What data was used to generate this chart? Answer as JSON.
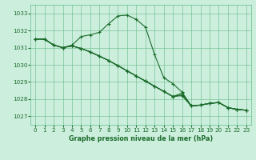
{
  "title": "Graphe pression niveau de la mer (hPa)",
  "background_color": "#cceedd",
  "grid_color": "#66bb88",
  "line_color": "#1a6b2a",
  "xlim": [
    -0.5,
    23.5
  ],
  "ylim": [
    1026.5,
    1033.5
  ],
  "yticks": [
    1027,
    1028,
    1029,
    1030,
    1031,
    1032,
    1033
  ],
  "xticks": [
    0,
    1,
    2,
    3,
    4,
    5,
    6,
    7,
    8,
    9,
    10,
    11,
    12,
    13,
    14,
    15,
    16,
    17,
    18,
    19,
    20,
    21,
    22,
    23
  ],
  "series": [
    [
      1031.5,
      1031.5,
      1031.15,
      1031.0,
      1031.15,
      1031.65,
      1031.75,
      1031.9,
      1032.4,
      1032.85,
      1032.9,
      1032.65,
      1032.2,
      1030.6,
      1029.25,
      1028.9,
      1028.4,
      1027.6,
      1027.65,
      1027.75,
      1027.8,
      1027.5,
      1027.4,
      1027.35
    ],
    [
      1031.5,
      1031.5,
      1031.15,
      1031.0,
      1031.1,
      1030.95,
      1030.75,
      1030.5,
      1030.25,
      1029.95,
      1029.65,
      1029.35,
      1029.05,
      1028.75,
      1028.45,
      1028.15,
      1028.35,
      1027.6,
      1027.65,
      1027.75,
      1027.8,
      1027.5,
      1027.4,
      1027.35
    ],
    [
      1031.5,
      1031.5,
      1031.15,
      1031.0,
      1031.1,
      1030.95,
      1030.75,
      1030.5,
      1030.25,
      1029.95,
      1029.65,
      1029.35,
      1029.05,
      1028.75,
      1028.45,
      1028.15,
      1028.2,
      1027.6,
      1027.65,
      1027.75,
      1027.8,
      1027.5,
      1027.4,
      1027.35
    ],
    [
      1031.5,
      1031.5,
      1031.15,
      1031.0,
      1031.1,
      1030.95,
      1030.75,
      1030.5,
      1030.25,
      1029.95,
      1029.65,
      1029.35,
      1029.05,
      1028.75,
      1028.45,
      1028.15,
      1028.25,
      1027.6,
      1027.65,
      1027.75,
      1027.8,
      1027.5,
      1027.4,
      1027.35
    ]
  ],
  "title_fontsize": 5.8,
  "tick_fontsize": 5.2
}
